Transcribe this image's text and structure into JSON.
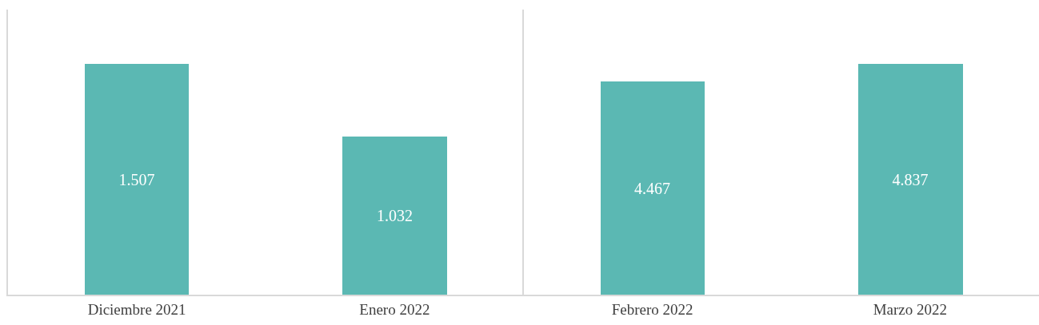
{
  "chart_data": [
    {
      "type": "bar",
      "categories": [
        "Diciembre 2021",
        "Enero 2022"
      ],
      "values": [
        1.507,
        1.032
      ],
      "data_labels": true,
      "color": "#5bb8b3",
      "grid": false,
      "tick_labels": "x"
    },
    {
      "type": "bar",
      "categories": [
        "Febrero 2022",
        "Marzo 2022"
      ],
      "values": [
        4.467,
        4.837
      ],
      "data_labels": true,
      "color": "#5bb8b3",
      "grid": false,
      "tick_labels": "x"
    }
  ]
}
